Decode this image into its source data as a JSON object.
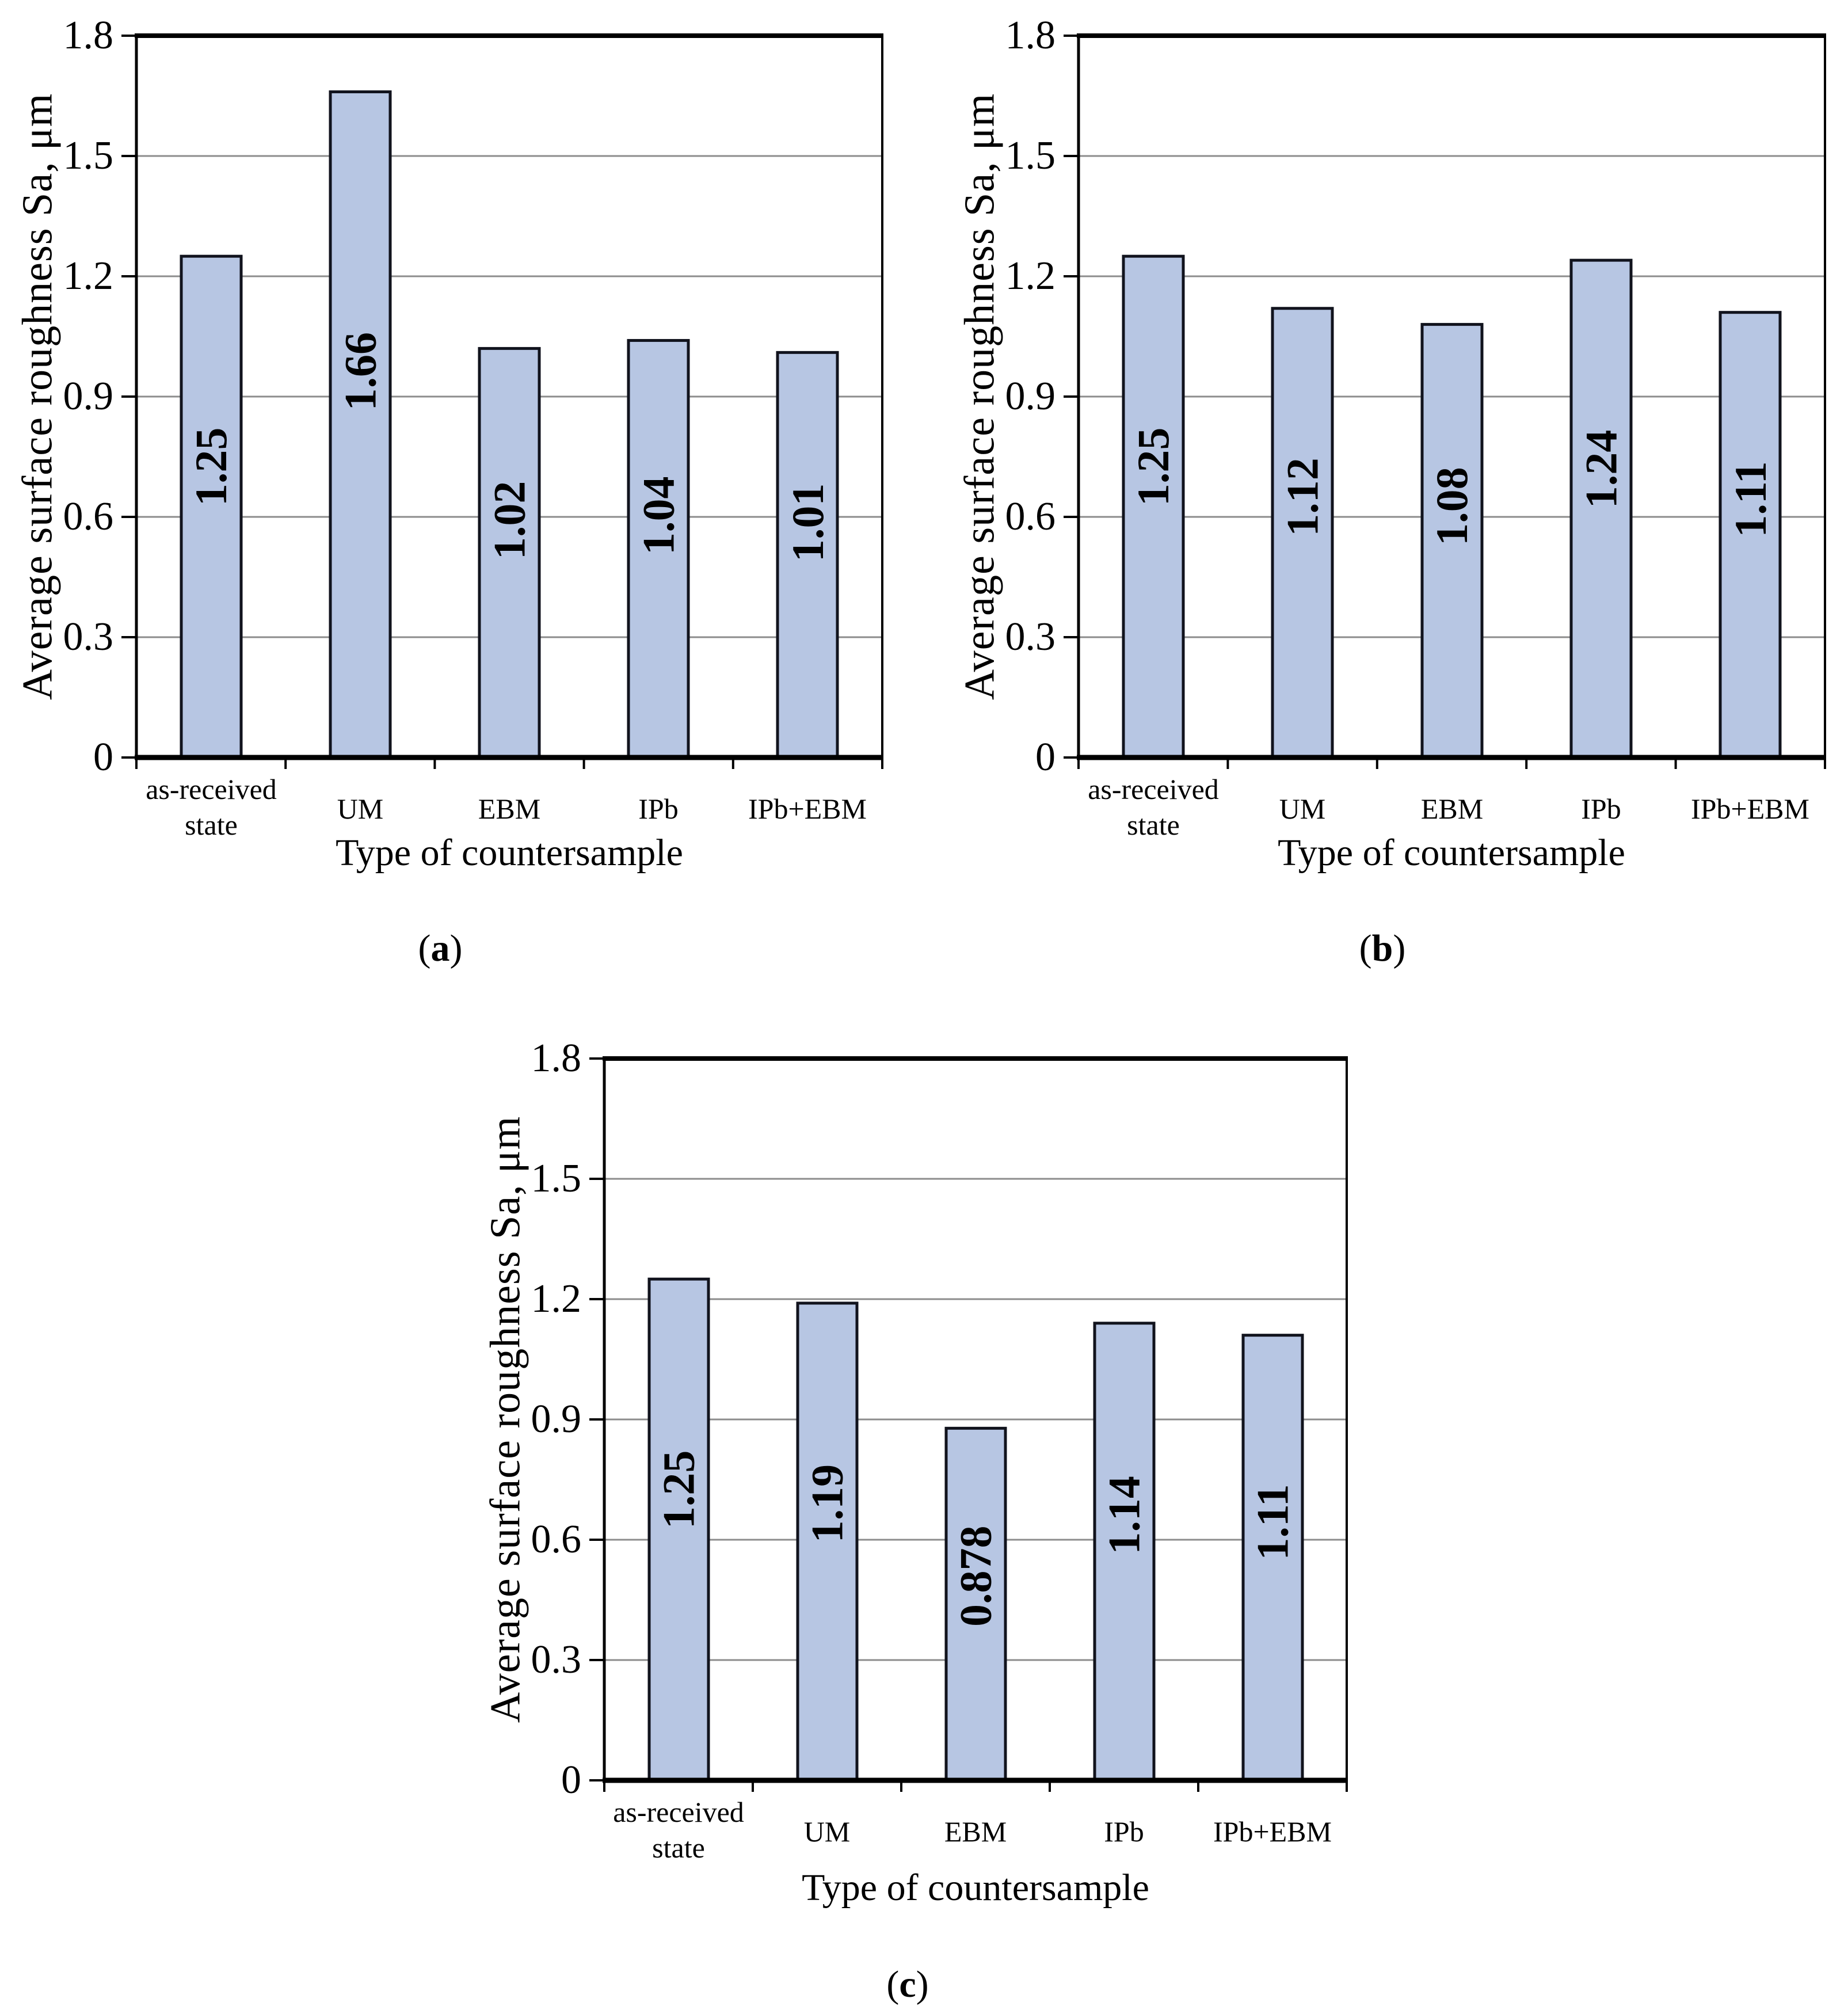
{
  "colors": {
    "bar_fill": "#b7c6e3",
    "bar_border": "#11131d",
    "gridline": "#8c8c8c",
    "axis": "#000000",
    "text": "#000000",
    "background": "#ffffff"
  },
  "chart_data": [
    {
      "id": "a",
      "type": "bar",
      "title": "",
      "caption": "(a)",
      "caption_letter": "a",
      "xlabel": "Type of countersample",
      "ylabel": "Average surface roughness Sa, μm",
      "categories": [
        "as-received\nstate",
        "UM",
        "EBM",
        "IPb",
        "IPb+EBM"
      ],
      "values": [
        1.25,
        1.66,
        1.02,
        1.04,
        1.01
      ],
      "bar_labels": [
        "1.25",
        "1.66",
        "1.02",
        "1.04",
        "1.01"
      ],
      "ylim": [
        0,
        1.8
      ],
      "ytick_step": 0.3,
      "yticks": [
        "1.8",
        "1.5",
        "1.2",
        "0.9",
        "0.6",
        "0.3",
        "0"
      ],
      "grid": true,
      "legend_position": "none"
    },
    {
      "id": "b",
      "type": "bar",
      "title": "",
      "caption": "(b)",
      "caption_letter": "b",
      "xlabel": "Type of countersample",
      "ylabel": "Average surface roughness Sa, μm",
      "categories": [
        "as-received\nstate",
        "UM",
        "EBM",
        "IPb",
        "IPb+EBM"
      ],
      "values": [
        1.25,
        1.12,
        1.08,
        1.24,
        1.11
      ],
      "bar_labels": [
        "1.25",
        "1.12",
        "1.08",
        "1.24",
        "1.11"
      ],
      "ylim": [
        0,
        1.8
      ],
      "ytick_step": 0.3,
      "yticks": [
        "1.8",
        "1.5",
        "1.2",
        "0.9",
        "0.6",
        "0.3",
        "0"
      ],
      "grid": true,
      "legend_position": "none"
    },
    {
      "id": "c",
      "type": "bar",
      "title": "",
      "caption": "(c)",
      "caption_letter": "c",
      "xlabel": "Type of countersample",
      "ylabel": "Average surface roughness Sa, μm",
      "categories": [
        "as-received\nstate",
        "UM",
        "EBM",
        "IPb",
        "IPb+EBM"
      ],
      "values": [
        1.25,
        1.19,
        0.878,
        1.14,
        1.11
      ],
      "bar_labels": [
        "1.25",
        "1.19",
        "0.878",
        "1.14",
        "1.11"
      ],
      "ylim": [
        0,
        1.8
      ],
      "ytick_step": 0.3,
      "yticks": [
        "1.8",
        "1.5",
        "1.2",
        "0.9",
        "0.6",
        "0.3",
        "0"
      ],
      "grid": true,
      "legend_position": "none"
    }
  ]
}
